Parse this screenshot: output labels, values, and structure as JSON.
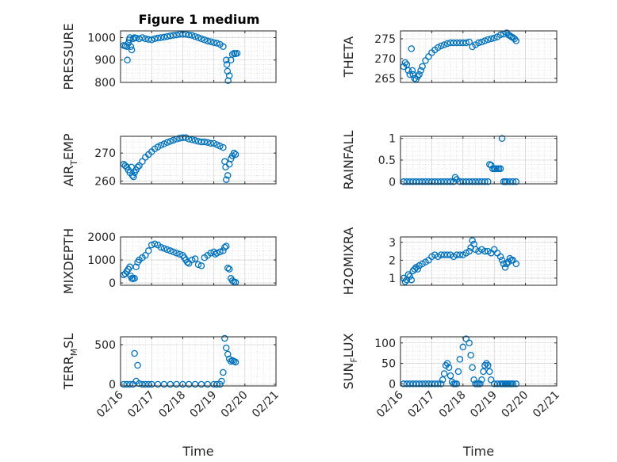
{
  "figure": {
    "title": "Figure 1 medium",
    "xlabel": "Time"
  },
  "colors": {
    "marker": "#0072BD",
    "axis": "#262626",
    "grid": "#c8c8c8"
  },
  "x_ticks": [
    "02/16",
    "02/17",
    "02/18",
    "02/19",
    "02/20",
    "02/21"
  ],
  "chart_data": [
    {
      "type": "scatter",
      "ylabel": "PRESSURE",
      "ylim": [
        800,
        1030
      ],
      "yticks": [
        800,
        900,
        1000
      ],
      "grid": "on",
      "x": [
        0.1,
        0.15,
        0.2,
        0.22,
        0.25,
        0.28,
        0.3,
        0.33,
        0.36,
        0.4,
        0.45,
        0.5,
        0.6,
        0.7,
        0.8,
        0.9,
        1.0,
        1.1,
        1.2,
        1.3,
        1.4,
        1.5,
        1.6,
        1.7,
        1.8,
        1.9,
        2.0,
        2.1,
        2.2,
        2.3,
        2.4,
        2.5,
        2.6,
        2.7,
        2.8,
        2.9,
        3.0,
        3.1,
        3.2,
        3.3,
        3.4,
        3.42,
        3.44,
        3.46,
        3.5,
        3.55,
        3.6,
        3.65,
        3.7,
        3.75
      ],
      "y": [
        965,
        963,
        960,
        900,
        975,
        990,
        1000,
        960,
        945,
        995,
        1000,
        998,
        995,
        1000,
        995,
        992,
        990,
        995,
        998,
        1000,
        1002,
        1005,
        1008,
        1010,
        1012,
        1015,
        1015,
        1015,
        1012,
        1010,
        1005,
        1000,
        995,
        990,
        985,
        982,
        978,
        975,
        970,
        960,
        900,
        880,
        850,
        808,
        830,
        900,
        925,
        930,
        928,
        930
      ]
    },
    {
      "type": "scatter",
      "ylabel": "THETA",
      "ylim": [
        264,
        277
      ],
      "yticks": [
        265,
        270,
        275
      ],
      "grid": "on",
      "x": [
        0.1,
        0.15,
        0.2,
        0.25,
        0.3,
        0.35,
        0.38,
        0.4,
        0.45,
        0.5,
        0.55,
        0.6,
        0.65,
        0.7,
        0.8,
        0.9,
        1.0,
        1.1,
        1.2,
        1.3,
        1.4,
        1.5,
        1.6,
        1.7,
        1.8,
        1.9,
        2.0,
        2.1,
        2.2,
        2.3,
        2.4,
        2.5,
        2.6,
        2.7,
        2.8,
        2.9,
        3.0,
        3.1,
        3.2,
        3.3,
        3.4,
        3.45,
        3.5,
        3.55,
        3.6,
        3.65,
        3.7
      ],
      "y": [
        268,
        269,
        268.5,
        267,
        266,
        272.5,
        267,
        266,
        265,
        264.8,
        265.5,
        266,
        267,
        268,
        269.5,
        270.5,
        271.5,
        272.2,
        272.8,
        273.2,
        273.5,
        273.8,
        274,
        274,
        274,
        274,
        274,
        274,
        274.2,
        273,
        273.5,
        274,
        274.2,
        274.5,
        274.8,
        275,
        275.2,
        275.5,
        276,
        276.2,
        276.5,
        276,
        275.8,
        275.5,
        275.3,
        275,
        274.5
      ]
    },
    {
      "type": "scatter",
      "ylabel": "AIR_TEMP",
      "ylim": [
        259,
        276
      ],
      "yticks": [
        260,
        270
      ],
      "grid": "on",
      "x": [
        0.1,
        0.15,
        0.2,
        0.25,
        0.3,
        0.35,
        0.38,
        0.42,
        0.45,
        0.5,
        0.55,
        0.6,
        0.7,
        0.8,
        0.9,
        1.0,
        1.1,
        1.2,
        1.3,
        1.4,
        1.5,
        1.6,
        1.7,
        1.8,
        1.9,
        2.0,
        2.1,
        2.2,
        2.3,
        2.4,
        2.5,
        2.6,
        2.7,
        2.8,
        2.9,
        3.0,
        3.1,
        3.2,
        3.3,
        3.35,
        3.38,
        3.4,
        3.45,
        3.5,
        3.55,
        3.6,
        3.65,
        3.7
      ],
      "y": [
        266,
        265.5,
        265,
        264,
        263,
        265,
        262,
        261.5,
        263,
        264,
        265,
        265.5,
        267,
        268.5,
        269.5,
        270.5,
        271.5,
        272.2,
        272.8,
        273.3,
        273.8,
        274.2,
        274.6,
        275,
        275.3,
        275.5,
        275.5,
        275,
        274.8,
        274.5,
        274.2,
        274,
        274,
        273.8,
        273.5,
        273.5,
        273,
        272.5,
        272,
        267,
        265,
        260.5,
        262,
        266,
        268,
        269,
        270,
        269.5
      ]
    },
    {
      "type": "scatter",
      "ylabel": "RAINFALL",
      "ylim": [
        -0.05,
        1.05
      ],
      "yticks": [
        0,
        0.5,
        1
      ],
      "grid": "on",
      "x": [
        0.1,
        0.2,
        0.3,
        0.4,
        0.5,
        0.6,
        0.7,
        0.8,
        0.9,
        1.0,
        1.1,
        1.2,
        1.3,
        1.4,
        1.5,
        1.6,
        1.7,
        1.75,
        1.8,
        1.9,
        2.0,
        2.1,
        2.2,
        2.3,
        2.4,
        2.5,
        2.6,
        2.7,
        2.8,
        2.85,
        2.9,
        2.95,
        3.0,
        3.05,
        3.1,
        3.15,
        3.2,
        3.25,
        3.3,
        3.35,
        3.4,
        3.5,
        3.6,
        3.7
      ],
      "y": [
        0,
        0,
        0,
        0,
        0,
        0,
        0,
        0,
        0,
        0,
        0,
        0,
        0,
        0,
        0,
        0,
        0,
        0.1,
        0.05,
        0,
        0,
        0,
        0,
        0,
        0,
        0,
        0,
        0,
        0,
        0.4,
        0.38,
        0.3,
        0.3,
        0.3,
        0.3,
        0.3,
        0.3,
        1.0,
        0,
        0,
        0,
        0,
        0,
        0
      ]
    },
    {
      "type": "scatter",
      "ylabel": "MIXDEPTH",
      "ylim": [
        -100,
        2000
      ],
      "yticks": [
        0,
        1000,
        2000
      ],
      "grid": "on",
      "x": [
        0.1,
        0.15,
        0.2,
        0.25,
        0.3,
        0.33,
        0.36,
        0.4,
        0.45,
        0.5,
        0.55,
        0.6,
        0.7,
        0.8,
        0.9,
        1.0,
        1.1,
        1.2,
        1.3,
        1.4,
        1.5,
        1.6,
        1.7,
        1.8,
        1.9,
        2.0,
        2.05,
        2.1,
        2.15,
        2.2,
        2.3,
        2.4,
        2.5,
        2.6,
        2.7,
        2.8,
        2.9,
        3.0,
        3.05,
        3.1,
        3.2,
        3.3,
        3.35,
        3.4,
        3.45,
        3.5,
        3.55,
        3.6,
        3.65,
        3.7
      ],
      "y": [
        350,
        400,
        500,
        600,
        700,
        300,
        200,
        180,
        200,
        700,
        900,
        1000,
        1100,
        1200,
        1400,
        1650,
        1700,
        1650,
        1550,
        1500,
        1450,
        1400,
        1350,
        1300,
        1250,
        1200,
        1100,
        1000,
        900,
        850,
        1000,
        1050,
        800,
        750,
        1100,
        1200,
        1300,
        1350,
        1250,
        1300,
        1350,
        1400,
        1550,
        1600,
        650,
        600,
        200,
        100,
        50,
        30
      ]
    },
    {
      "type": "scatter",
      "ylabel": "H2OMIXRA",
      "ylim": [
        0.6,
        3.3
      ],
      "yticks": [
        1,
        2,
        3
      ],
      "grid": "on",
      "x": [
        0.1,
        0.15,
        0.2,
        0.25,
        0.3,
        0.35,
        0.4,
        0.45,
        0.5,
        0.55,
        0.6,
        0.7,
        0.8,
        0.9,
        1.0,
        1.1,
        1.2,
        1.3,
        1.4,
        1.5,
        1.6,
        1.7,
        1.8,
        1.9,
        2.0,
        2.1,
        2.2,
        2.25,
        2.3,
        2.35,
        2.4,
        2.5,
        2.6,
        2.7,
        2.8,
        2.9,
        3.0,
        3.1,
        3.2,
        3.25,
        3.3,
        3.35,
        3.4,
        3.45,
        3.5,
        3.55,
        3.6,
        3.7
      ],
      "y": [
        1.0,
        0.8,
        0.9,
        1.2,
        1.1,
        0.9,
        1.4,
        1.5,
        1.6,
        1.5,
        1.7,
        1.8,
        1.9,
        2.0,
        2.2,
        2.3,
        2.2,
        2.3,
        2.3,
        2.3,
        2.3,
        2.2,
        2.3,
        2.3,
        2.3,
        2.4,
        2.5,
        2.7,
        3.1,
        2.9,
        2.6,
        2.5,
        2.6,
        2.5,
        2.5,
        2.4,
        2.6,
        2.4,
        2.2,
        2.0,
        1.8,
        1.6,
        1.8,
        1.9,
        2.1,
        2.0,
        2.0,
        1.8
      ]
    },
    {
      "type": "scatter",
      "ylabel": "TERR_MSL",
      "ylim": [
        -20,
        600
      ],
      "yticks": [
        0,
        500
      ],
      "grid": "on",
      "x": [
        0.1,
        0.2,
        0.3,
        0.4,
        0.45,
        0.5,
        0.55,
        0.6,
        0.7,
        0.8,
        0.9,
        1.0,
        1.2,
        1.4,
        1.6,
        1.8,
        2.0,
        2.2,
        2.4,
        2.6,
        2.8,
        3.0,
        3.1,
        3.2,
        3.25,
        3.3,
        3.35,
        3.4,
        3.45,
        3.5,
        3.55,
        3.6,
        3.65,
        3.7
      ],
      "y": [
        0,
        0,
        0,
        0,
        390,
        40,
        240,
        10,
        0,
        0,
        0,
        0,
        0,
        0,
        0,
        0,
        0,
        0,
        0,
        0,
        0,
        0,
        0,
        0,
        40,
        150,
        580,
        460,
        380,
        320,
        290,
        300,
        290,
        280
      ]
    },
    {
      "type": "scatter",
      "ylabel": "SUN_FLUX",
      "ylim": [
        -5,
        115
      ],
      "yticks": [
        0,
        50,
        100
      ],
      "grid": "on",
      "x": [
        0.1,
        0.2,
        0.3,
        0.4,
        0.5,
        0.6,
        0.7,
        0.8,
        0.9,
        1.0,
        1.1,
        1.2,
        1.3,
        1.35,
        1.4,
        1.45,
        1.5,
        1.55,
        1.6,
        1.65,
        1.7,
        1.75,
        1.8,
        1.85,
        1.9,
        2.0,
        2.1,
        2.2,
        2.25,
        2.3,
        2.35,
        2.4,
        2.45,
        2.5,
        2.55,
        2.6,
        2.65,
        2.7,
        2.75,
        2.8,
        2.85,
        2.9,
        3.0,
        3.1,
        3.2,
        3.25,
        3.3,
        3.35,
        3.4,
        3.45,
        3.5,
        3.55,
        3.6,
        3.7
      ],
      "y": [
        0,
        0,
        0,
        0,
        0,
        0,
        0,
        0,
        0,
        0,
        0,
        0,
        0,
        10,
        25,
        45,
        50,
        40,
        20,
        5,
        0,
        0,
        0,
        30,
        60,
        90,
        110,
        100,
        70,
        40,
        10,
        0,
        0,
        0,
        0,
        10,
        30,
        45,
        50,
        45,
        30,
        10,
        0,
        0,
        0,
        0,
        0,
        0,
        0,
        0,
        0,
        0,
        0,
        0
      ]
    }
  ]
}
